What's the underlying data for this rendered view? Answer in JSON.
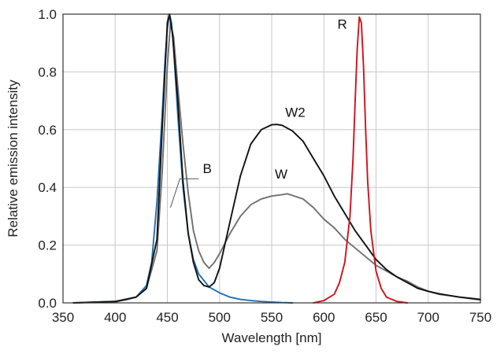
{
  "chart_data": {
    "type": "line",
    "xlabel": "Wavelength [nm]",
    "ylabel": "Relative emission intensity",
    "xlim": [
      350,
      750
    ],
    "ylim": [
      0,
      1.0
    ],
    "xticks": [
      "350",
      "400",
      "450",
      "500",
      "550",
      "600",
      "650",
      "700",
      "750"
    ],
    "yticks": [
      "0.0",
      "0.2",
      "0.4",
      "0.6",
      "0.8",
      "1.0"
    ],
    "grid": true,
    "series": [
      {
        "name": "B",
        "color": "#1f6fb5",
        "x": [
          360,
          400,
          410,
          420,
          430,
          435,
          440,
          445,
          448,
          450,
          452,
          454,
          456,
          460,
          465,
          470,
          475,
          480,
          490,
          500,
          510,
          520,
          530,
          540,
          550,
          560,
          570
        ],
        "y": [
          0.0,
          0.005,
          0.01,
          0.02,
          0.06,
          0.14,
          0.35,
          0.65,
          0.85,
          0.95,
          1.0,
          0.97,
          0.88,
          0.65,
          0.4,
          0.24,
          0.15,
          0.1,
          0.055,
          0.035,
          0.02,
          0.012,
          0.008,
          0.005,
          0.003,
          0.001,
          0.0
        ]
      },
      {
        "name": "W",
        "color": "#707070",
        "x": [
          360,
          400,
          420,
          430,
          440,
          445,
          450,
          453,
          456,
          460,
          465,
          470,
          475,
          480,
          485,
          490,
          495,
          500,
          510,
          520,
          530,
          540,
          550,
          560,
          565,
          570,
          580,
          590,
          600,
          610,
          620,
          630,
          640,
          650,
          660,
          670,
          680,
          690,
          700,
          710,
          720,
          730,
          740,
          750
        ],
        "y": [
          0.0,
          0.003,
          0.02,
          0.05,
          0.18,
          0.45,
          0.82,
          0.97,
          0.92,
          0.75,
          0.55,
          0.38,
          0.25,
          0.18,
          0.14,
          0.12,
          0.14,
          0.17,
          0.24,
          0.3,
          0.34,
          0.36,
          0.37,
          0.375,
          0.378,
          0.372,
          0.36,
          0.33,
          0.29,
          0.26,
          0.22,
          0.19,
          0.16,
          0.13,
          0.11,
          0.09,
          0.075,
          0.055,
          0.04,
          0.03,
          0.025,
          0.02,
          0.015,
          0.01
        ]
      },
      {
        "name": "W2",
        "color": "#111111",
        "x": [
          360,
          400,
          420,
          430,
          440,
          445,
          450,
          452,
          455,
          460,
          465,
          470,
          475,
          480,
          485,
          490,
          495,
          500,
          510,
          520,
          530,
          540,
          550,
          555,
          560,
          570,
          580,
          590,
          600,
          610,
          620,
          630,
          640,
          650,
          660,
          670,
          680,
          690,
          700,
          710,
          720,
          730,
          740,
          750
        ],
        "y": [
          0.0,
          0.005,
          0.02,
          0.05,
          0.22,
          0.6,
          0.97,
          1.0,
          0.93,
          0.7,
          0.42,
          0.24,
          0.14,
          0.08,
          0.06,
          0.055,
          0.07,
          0.12,
          0.28,
          0.44,
          0.55,
          0.6,
          0.617,
          0.618,
          0.615,
          0.595,
          0.56,
          0.5,
          0.44,
          0.37,
          0.31,
          0.25,
          0.2,
          0.15,
          0.115,
          0.09,
          0.07,
          0.05,
          0.04,
          0.032,
          0.026,
          0.02,
          0.016,
          0.012
        ]
      },
      {
        "name": "R",
        "color": "#d0121b",
        "x": [
          590,
          600,
          610,
          615,
          620,
          625,
          628,
          630,
          632,
          634,
          636,
          638,
          640,
          642,
          645,
          650,
          655,
          660,
          670,
          680
        ],
        "y": [
          0.0,
          0.008,
          0.03,
          0.07,
          0.14,
          0.3,
          0.5,
          0.7,
          0.88,
          0.99,
          0.97,
          0.82,
          0.6,
          0.42,
          0.25,
          0.11,
          0.05,
          0.02,
          0.005,
          0.0
        ]
      }
    ],
    "annotations": [
      {
        "text": "R",
        "x": 613,
        "y": 0.95
      },
      {
        "text": "W2",
        "x": 563,
        "y": 0.645
      },
      {
        "text": "W",
        "x": 553,
        "y": 0.43
      },
      {
        "text": "B",
        "x": 484,
        "y": 0.45
      }
    ]
  }
}
